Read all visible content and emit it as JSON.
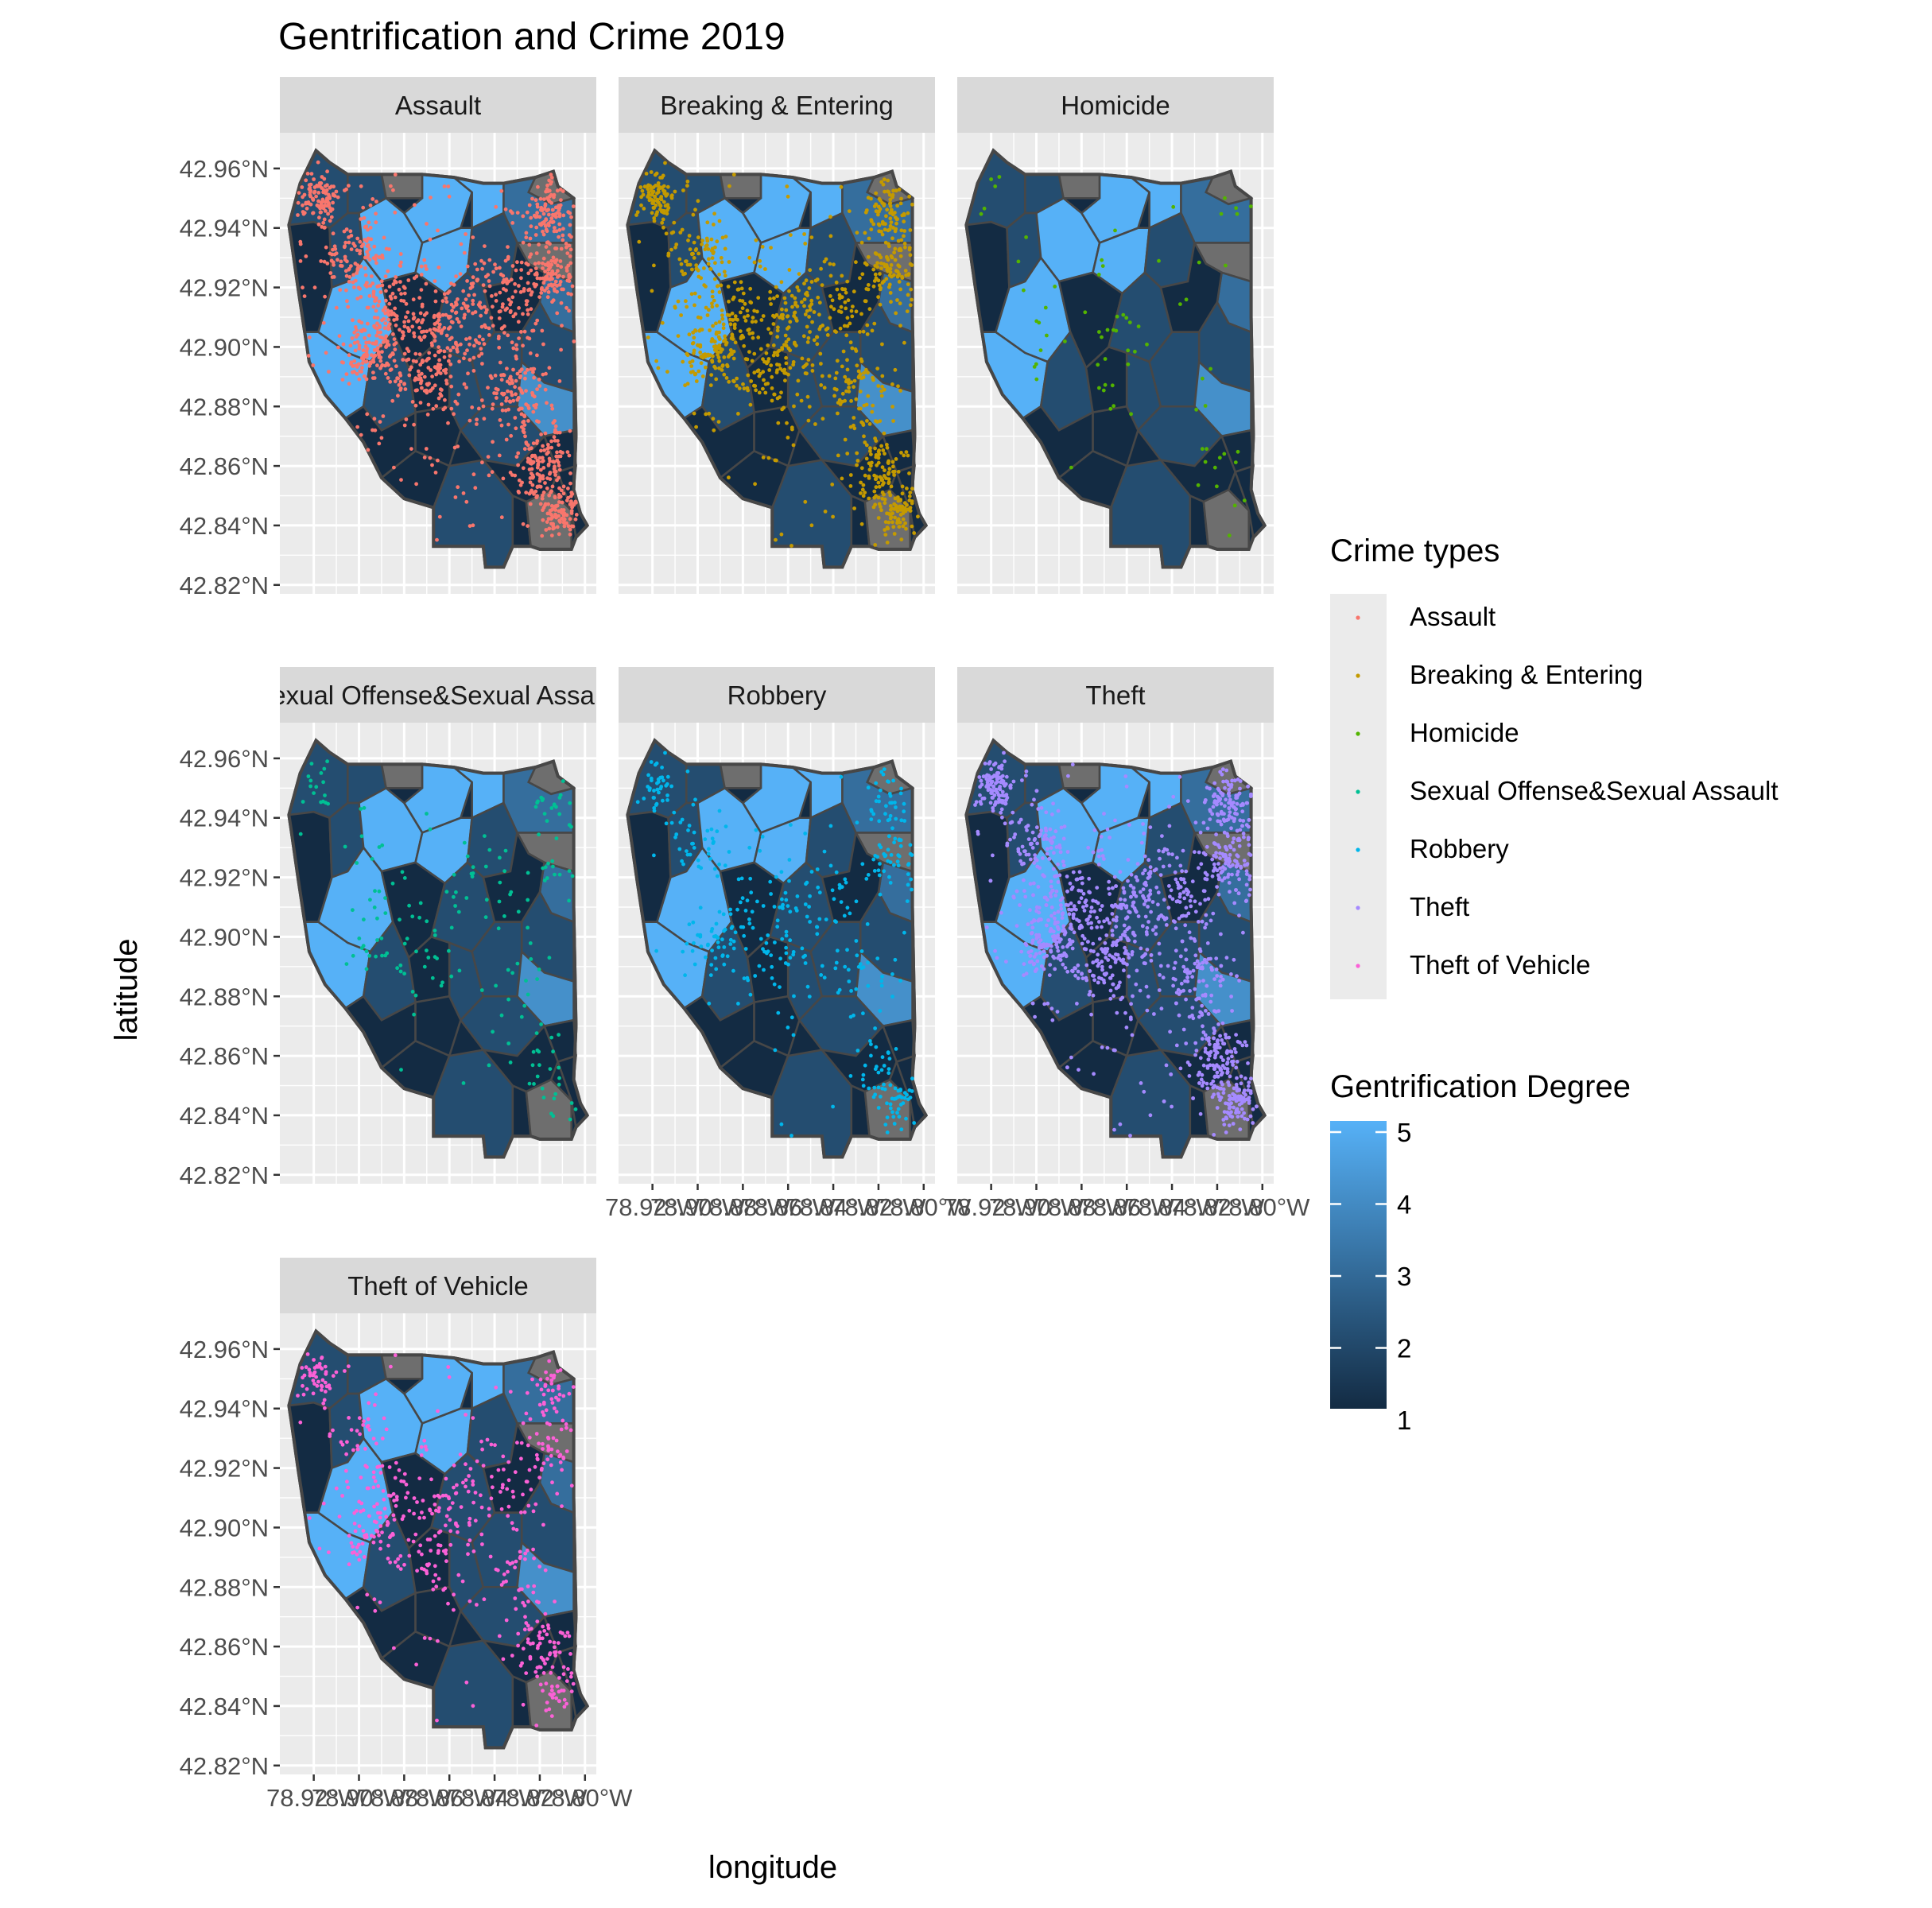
{
  "title": "Gentrification and Crime 2019",
  "axes": {
    "x_title": "longitude",
    "y_title": "latitude",
    "x_ticks": [
      "78.92°W",
      "78.90°W",
      "78.88°W",
      "78.86°W",
      "78.84°W",
      "78.82°W",
      "78.80°W"
    ],
    "y_ticks": [
      "42.82°N",
      "42.84°N",
      "42.86°N",
      "42.88°N",
      "42.90°N",
      "42.92°N",
      "42.94°N",
      "42.96°N"
    ]
  },
  "panels": [
    {
      "label": "Assault",
      "color": "#F8766D",
      "density": 1.0
    },
    {
      "label": "Breaking & Entering",
      "color": "#C49A00",
      "density": 0.75
    },
    {
      "label": "Homicide",
      "color": "#53B400",
      "density": 0.05
    },
    {
      "label": "Sexual Offense&Sexual Assault",
      "color": "#00C094",
      "density": 0.13
    },
    {
      "label": "Robbery",
      "color": "#00B6EB",
      "density": 0.3
    },
    {
      "label": "Theft",
      "color": "#A58AFF",
      "density": 1.0
    },
    {
      "label": "Theft of Vehicle",
      "color": "#FB61D7",
      "density": 0.4
    }
  ],
  "legend_crime": {
    "title": "Crime types",
    "items": [
      {
        "label": "Assault",
        "color": "#F8766D"
      },
      {
        "label": "Breaking & Entering",
        "color": "#C49A00"
      },
      {
        "label": "Homicide",
        "color": "#53B400"
      },
      {
        "label": "Sexual Offense&Sexual Assault",
        "color": "#00C094"
      },
      {
        "label": "Robbery",
        "color": "#00B6EB"
      },
      {
        "label": "Theft",
        "color": "#A58AFF"
      },
      {
        "label": "Theft of Vehicle",
        "color": "#FB61D7"
      }
    ]
  },
  "legend_gentrification": {
    "title": "Gentrification Degree",
    "ticks": [
      "5",
      "4",
      "3",
      "2",
      "1"
    ],
    "low_color": "#132B43",
    "high_color": "#56B1F7"
  },
  "colors": {
    "panel_bg": "#EBEBEB",
    "strip_bg": "#D9D9D9",
    "grid": "#FFFFFF",
    "tract_border": "#474747",
    "na_fill": "#6E6E6E"
  }
}
